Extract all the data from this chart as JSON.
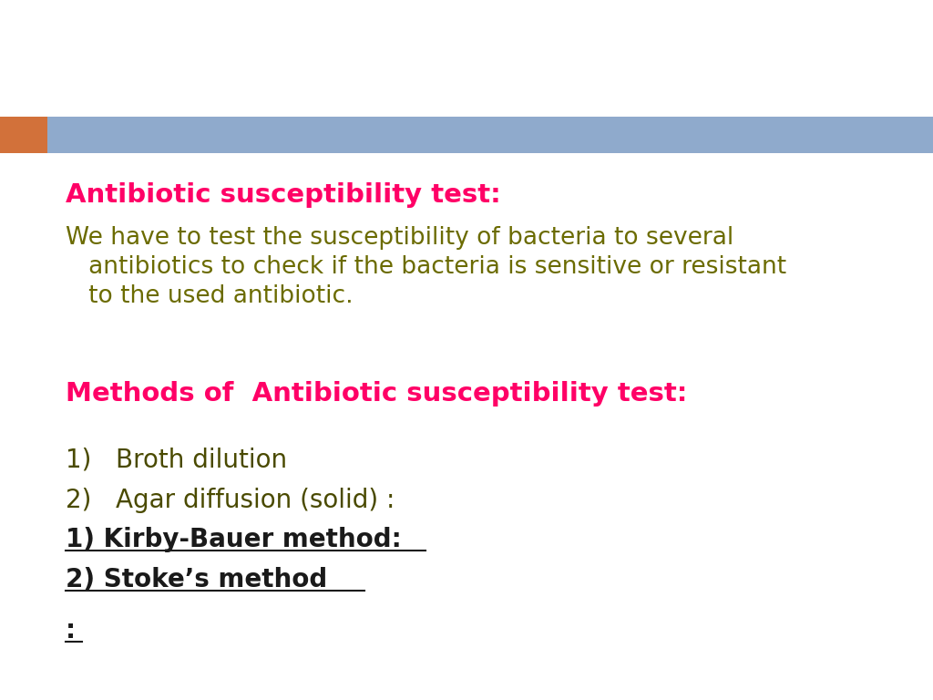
{
  "bg_color": "#ffffff",
  "header_bar_color": "#8FAACC",
  "header_orange_color": "#D2713A",
  "title1": "Antibiotic susceptibility test:",
  "title1_color": "#FF0066",
  "body1_line1": "We have to test the susceptibility of bacteria to several",
  "body1_line2": "   antibiotics to check if the bacteria is sensitive or resistant",
  "body1_line3": "   to the used antibiotic.",
  "body1_color": "#6B6B00",
  "title2": "Methods of  Antibiotic susceptibility test:",
  "title2_color": "#FF0066",
  "item1": "1)   Broth dilution",
  "item1_color": "#4A4A00",
  "item2": "2)   Agar diffusion (solid) :",
  "item2_color": "#4A4A00",
  "item3": "1) Kirby-Bauer method:",
  "item3_color": "#1a1a1a",
  "item4": "2) Stoke’s method",
  "item4_color": "#1a1a1a",
  "item5": ":",
  "item5_color": "#1a1a1a",
  "fontsize_title": 21,
  "fontsize_body": 19,
  "fontsize_title2": 21,
  "fontsize_items": 20
}
